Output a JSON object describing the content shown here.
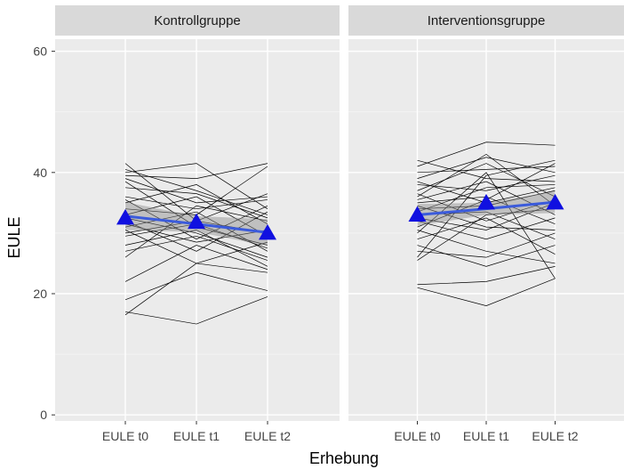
{
  "chart_data": {
    "type": "line",
    "xlabel": "Erhebung",
    "ylabel": "EULE",
    "x_categories": [
      "EULE t0",
      "EULE t1",
      "EULE t2"
    ],
    "ylim": [
      -1,
      62
    ],
    "yticks": [
      0,
      20,
      40,
      60
    ],
    "grid": true,
    "colors": {
      "individual": "#000000",
      "trend": "#3b5bdb",
      "ci_band": "#8c8c8c",
      "mean_marker": "#1010e0",
      "panel_bg": "#ebebeb",
      "strip_bg": "#d9d9d9"
    },
    "panels": [
      {
        "title": "Kontrollgruppe",
        "individual_lines": [
          [
            41.5,
            32.0,
            30.0
          ],
          [
            40.5,
            37.0,
            33.0
          ],
          [
            40.0,
            41.5,
            34.0
          ],
          [
            39.5,
            39.0,
            41.5
          ],
          [
            39.0,
            35.0,
            36.0
          ],
          [
            38.5,
            31.0,
            28.0
          ],
          [
            37.5,
            36.5,
            32.5
          ],
          [
            36.0,
            34.0,
            35.5
          ],
          [
            35.5,
            29.0,
            34.5
          ],
          [
            35.0,
            38.0,
            31.5
          ],
          [
            34.0,
            33.0,
            41.0
          ],
          [
            33.0,
            36.0,
            29.5
          ],
          [
            32.5,
            30.0,
            26.0
          ],
          [
            32.0,
            27.0,
            33.5
          ],
          [
            31.5,
            28.5,
            30.5
          ],
          [
            31.0,
            33.5,
            27.0
          ],
          [
            30.5,
            25.0,
            23.5
          ],
          [
            30.0,
            32.0,
            36.5
          ],
          [
            29.5,
            31.5,
            27.5
          ],
          [
            28.0,
            30.5,
            24.5
          ],
          [
            27.0,
            29.5,
            25.5
          ],
          [
            26.0,
            34.5,
            32.0
          ],
          [
            22.0,
            28.0,
            24.0
          ],
          [
            19.0,
            23.5,
            20.5
          ],
          [
            17.0,
            15.0,
            19.5
          ],
          [
            16.5,
            25.0,
            28.5
          ]
        ],
        "trend": [
          32.8,
          31.5,
          30.1
        ],
        "ci_lower": [
          30.5,
          30.2,
          27.9
        ],
        "ci_upper": [
          35.1,
          32.8,
          32.3
        ],
        "means": [
          32.5,
          31.8,
          30.0
        ]
      },
      {
        "title": "Interventionsgruppe",
        "individual_lines": [
          [
            42.0,
            39.0,
            38.5
          ],
          [
            41.0,
            45.0,
            44.5
          ],
          [
            40.0,
            40.5,
            41.0
          ],
          [
            39.0,
            42.5,
            40.0
          ],
          [
            38.5,
            35.0,
            37.5
          ],
          [
            38.0,
            37.0,
            39.5
          ],
          [
            37.0,
            41.5,
            36.0
          ],
          [
            36.5,
            32.0,
            35.5
          ],
          [
            36.0,
            43.0,
            34.5
          ],
          [
            35.5,
            38.5,
            33.0
          ],
          [
            35.0,
            36.0,
            31.5
          ],
          [
            34.5,
            31.0,
            30.5
          ],
          [
            34.0,
            34.5,
            37.0
          ],
          [
            33.5,
            37.5,
            38.0
          ],
          [
            33.0,
            33.5,
            29.0
          ],
          [
            32.5,
            30.5,
            35.0
          ],
          [
            32.0,
            29.0,
            32.5
          ],
          [
            31.0,
            35.5,
            41.5
          ],
          [
            30.5,
            27.0,
            25.0
          ],
          [
            30.0,
            40.0,
            22.5
          ],
          [
            29.0,
            32.5,
            26.5
          ],
          [
            28.0,
            24.5,
            28.0
          ],
          [
            27.0,
            26.0,
            30.0
          ],
          [
            26.0,
            39.5,
            42.0
          ],
          [
            25.5,
            33.0,
            34.0
          ],
          [
            21.5,
            22.0,
            24.5
          ],
          [
            21.0,
            18.0,
            22.5
          ]
        ],
        "trend": [
          33.0,
          34.0,
          35.1
        ],
        "ci_lower": [
          31.2,
          33.0,
          33.3
        ],
        "ci_upper": [
          34.8,
          35.0,
          36.9
        ],
        "means": [
          33.0,
          35.0,
          35.0
        ]
      }
    ]
  }
}
